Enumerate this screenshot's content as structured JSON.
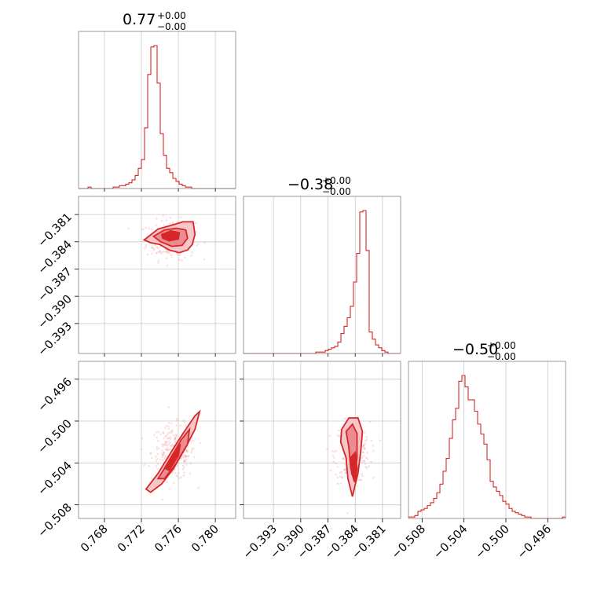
{
  "chart_data": {
    "type": "corner",
    "colors": {
      "accent": "#d62728",
      "grid": "#c8c8c8",
      "frame": "#808080"
    },
    "grid": true,
    "parameters": [
      {
        "id": "p0",
        "range": [
          0.7652,
          0.7822
        ],
        "ticks": [
          0.768,
          0.772,
          0.776,
          0.78
        ],
        "tick_labels": [
          "0.768",
          "0.772",
          "0.776",
          "0.780"
        ],
        "title": {
          "base": "0.77",
          "sup": "+0.00",
          "sub": "−0.00"
        }
      },
      {
        "id": "p1",
        "range": [
          -0.3963,
          -0.379
        ],
        "ticks": [
          -0.393,
          -0.39,
          -0.387,
          -0.384,
          -0.381
        ],
        "tick_labels": [
          "−0.393",
          "−0.390",
          "−0.387",
          "−0.384",
          "−0.381"
        ],
        "title": {
          "base": "−0.38",
          "sup": "+0.00",
          "sub": "−0.00"
        }
      },
      {
        "id": "p2",
        "range": [
          -0.5093,
          -0.4943
        ],
        "ticks": [
          -0.508,
          -0.504,
          -0.5,
          -0.496
        ],
        "tick_labels": [
          "−0.508",
          "−0.504",
          "−0.500",
          "−0.496"
        ],
        "title": {
          "base": "−0.50",
          "sup": "+0.00",
          "sub": "−0.00"
        }
      }
    ],
    "histograms": [
      {
        "param": 0,
        "range": [
          0.7652,
          0.7822
        ],
        "counts": [
          0,
          0,
          0,
          1,
          0,
          0,
          0,
          0,
          0,
          0,
          0,
          1,
          1,
          2,
          2,
          3,
          4,
          6,
          9,
          14,
          20,
          42,
          79,
          98,
          99,
          73,
          38,
          23,
          14,
          11,
          7,
          5,
          3,
          2,
          1,
          1,
          0,
          0,
          0,
          0,
          0,
          0,
          0,
          0,
          0,
          0,
          0,
          0,
          0,
          0
        ]
      },
      {
        "param": 1,
        "range": [
          -0.3963,
          -0.379
        ],
        "counts": [
          0,
          0,
          0,
          0,
          0,
          0,
          0,
          0,
          0,
          0,
          0,
          0,
          0,
          0,
          0,
          0,
          0,
          0,
          0,
          0,
          0,
          0,
          0,
          1,
          1,
          1,
          2,
          3,
          4,
          5,
          8,
          14,
          19,
          25,
          33,
          50,
          70,
          99,
          100,
          72,
          15,
          10,
          6,
          4,
          2,
          1,
          0,
          0,
          0,
          0
        ]
      },
      {
        "param": 2,
        "range": [
          -0.5093,
          -0.4943
        ],
        "counts": [
          1,
          1,
          2,
          5,
          6,
          7,
          9,
          11,
          14,
          18,
          24,
          33,
          42,
          56,
          69,
          77,
          96,
          100,
          92,
          83,
          83,
          75,
          66,
          59,
          52,
          41,
          26,
          22,
          19,
          16,
          12,
          10,
          7,
          5,
          4,
          3,
          2,
          1,
          1,
          0,
          0,
          0,
          0,
          0,
          0,
          0,
          0,
          0,
          0,
          1
        ]
      }
    ],
    "pairs": [
      {
        "x": 0,
        "y": 1,
        "contours": [
          {
            "level": 1,
            "points": [
              [
                0.7723,
                -0.3838
              ],
              [
                0.7738,
                -0.3826
              ],
              [
                0.7752,
                -0.3822
              ],
              [
                0.7765,
                -0.3818
              ],
              [
                0.7776,
                -0.3818
              ],
              [
                0.7778,
                -0.3832
              ],
              [
                0.7775,
                -0.3843
              ],
              [
                0.777,
                -0.3849
              ],
              [
                0.7761,
                -0.3852
              ],
              [
                0.775,
                -0.3849
              ],
              [
                0.774,
                -0.3843
              ],
              [
                0.773,
                -0.3841
              ]
            ]
          },
          {
            "level": 2,
            "points": [
              [
                0.7733,
                -0.3834
              ],
              [
                0.7745,
                -0.3827
              ],
              [
                0.7758,
                -0.3825
              ],
              [
                0.7768,
                -0.3827
              ],
              [
                0.777,
                -0.3836
              ],
              [
                0.7764,
                -0.3844
              ],
              [
                0.7753,
                -0.3845
              ],
              [
                0.7741,
                -0.384
              ]
            ]
          },
          {
            "level": 3,
            "points": [
              [
                0.7742,
                -0.3832
              ],
              [
                0.7752,
                -0.3828
              ],
              [
                0.7761,
                -0.383
              ],
              [
                0.776,
                -0.3837
              ],
              [
                0.775,
                -0.3839
              ],
              [
                0.7743,
                -0.3836
              ]
            ]
          }
        ],
        "scatter_center": [
          0.7752,
          -0.3838
        ],
        "scatter_spread": [
          0.0022,
          0.0018
        ]
      },
      {
        "x": 0,
        "y": 2,
        "contours": [
          {
            "level": 1,
            "points": [
              [
                0.7725,
                -0.5065
              ],
              [
                0.7738,
                -0.505
              ],
              [
                0.7752,
                -0.503
              ],
              [
                0.7765,
                -0.5012
              ],
              [
                0.7778,
                -0.4995
              ],
              [
                0.7783,
                -0.4991
              ],
              [
                0.7778,
                -0.5008
              ],
              [
                0.7768,
                -0.5025
              ],
              [
                0.7755,
                -0.5045
              ],
              [
                0.7742,
                -0.506
              ],
              [
                0.773,
                -0.5068
              ]
            ]
          },
          {
            "level": 2,
            "points": [
              [
                0.7738,
                -0.5055
              ],
              [
                0.775,
                -0.5038
              ],
              [
                0.7763,
                -0.5018
              ],
              [
                0.7772,
                -0.5008
              ],
              [
                0.777,
                -0.5022
              ],
              [
                0.7758,
                -0.504
              ],
              [
                0.7745,
                -0.5055
              ]
            ]
          },
          {
            "level": 3,
            "points": [
              [
                0.7745,
                -0.5045
              ],
              [
                0.7755,
                -0.503
              ],
              [
                0.7762,
                -0.5022
              ],
              [
                0.776,
                -0.5033
              ],
              [
                0.775,
                -0.5047
              ]
            ]
          }
        ],
        "scatter_center": [
          0.7755,
          -0.503
        ],
        "scatter_spread": [
          0.002,
          0.0022
        ]
      },
      {
        "x": 1,
        "y": 2,
        "contours": [
          {
            "level": 1,
            "points": [
              [
                -0.3855,
                -0.5008
              ],
              [
                -0.3847,
                -0.4997
              ],
              [
                -0.3837,
                -0.4997
              ],
              [
                -0.3832,
                -0.501
              ],
              [
                -0.3834,
                -0.503
              ],
              [
                -0.3837,
                -0.505
              ],
              [
                -0.3843,
                -0.5072
              ],
              [
                -0.3848,
                -0.5055
              ],
              [
                -0.385,
                -0.5035
              ],
              [
                -0.3856,
                -0.502
              ]
            ]
          },
          {
            "level": 2,
            "points": [
              [
                -0.385,
                -0.501
              ],
              [
                -0.3843,
                -0.5003
              ],
              [
                -0.3838,
                -0.5012
              ],
              [
                -0.3838,
                -0.5035
              ],
              [
                -0.3841,
                -0.5058
              ],
              [
                -0.3845,
                -0.5045
              ],
              [
                -0.3847,
                -0.5025
              ]
            ]
          },
          {
            "level": 3,
            "points": [
              [
                -0.3845,
                -0.5035
              ],
              [
                -0.384,
                -0.503
              ],
              [
                -0.3838,
                -0.5045
              ],
              [
                -0.384,
                -0.5058
              ],
              [
                -0.3844,
                -0.505
              ]
            ]
          }
        ],
        "scatter_center": [
          -0.3843,
          -0.503
        ],
        "scatter_spread": [
          0.0016,
          0.0024
        ]
      }
    ]
  }
}
